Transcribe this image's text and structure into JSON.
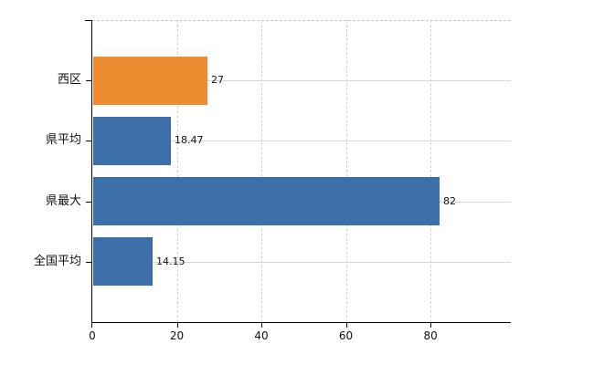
{
  "chart_data": {
    "type": "bar",
    "orientation": "horizontal",
    "title": "",
    "xlabel": "",
    "ylabel": "",
    "categories": [
      "西区",
      "県平均",
      "県最大",
      "全国平均"
    ],
    "values": [
      27,
      18.47,
      82,
      14.15
    ],
    "value_labels": [
      "27",
      "18.47",
      "82",
      "14.15"
    ],
    "bar_colors": [
      "#EE8C31",
      "#3C6FA8",
      "#3C6FA8",
      "#3C6FA8"
    ],
    "x_ticks": [
      0,
      20,
      40,
      60,
      80
    ],
    "x_tick_labels": [
      "0",
      "20",
      "40",
      "60",
      "80"
    ],
    "xlim": [
      0,
      99
    ],
    "grid": {
      "vertical": true,
      "horizontal": true,
      "top_border": true,
      "style": "dashed-light"
    },
    "legend": null,
    "colors": {
      "background": "#FFFFFF",
      "axis": "#000000",
      "gridline": "#D6D8D2",
      "text": "#111111",
      "highlight_bar": "#EE8C31",
      "default_bar": "#3C6FA8"
    }
  }
}
